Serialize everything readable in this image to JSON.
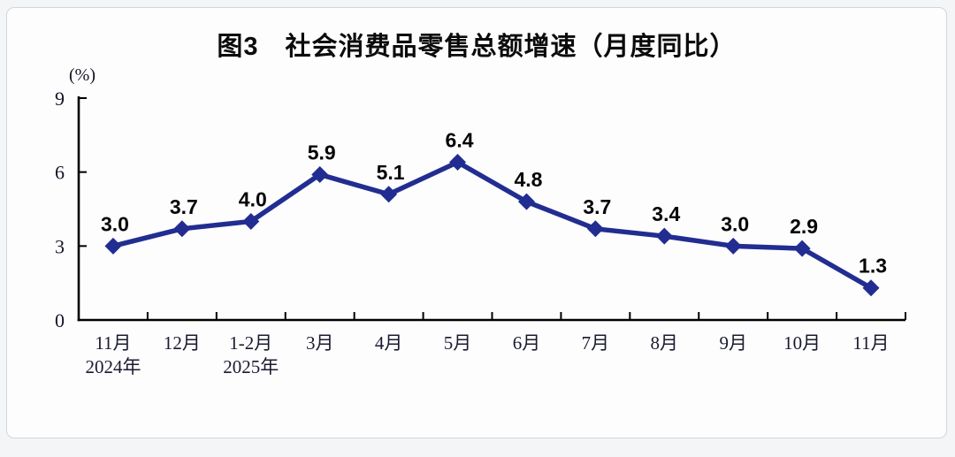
{
  "chart_data": {
    "type": "line",
    "title": "图3　社会消费品零售总额增速（月度同比）",
    "unit_label": "(%)",
    "categories": [
      "11月",
      "12月",
      "1-2月",
      "3月",
      "4月",
      "5月",
      "6月",
      "7月",
      "8月",
      "9月",
      "10月",
      "11月"
    ],
    "sub_labels": {
      "0": "2024年",
      "2": "2025年"
    },
    "values": [
      3.0,
      3.7,
      4.0,
      5.9,
      5.1,
      6.4,
      4.8,
      3.7,
      3.4,
      3.0,
      2.9,
      1.3
    ],
    "yticks": [
      0,
      3,
      6,
      9
    ],
    "ylim": [
      0,
      9
    ],
    "grid": false,
    "legend": false,
    "marker": "diamond",
    "line_color": "#222d91",
    "marker_color": "#222d91",
    "value_label_color": "#050505",
    "axis_color": "#000000"
  }
}
